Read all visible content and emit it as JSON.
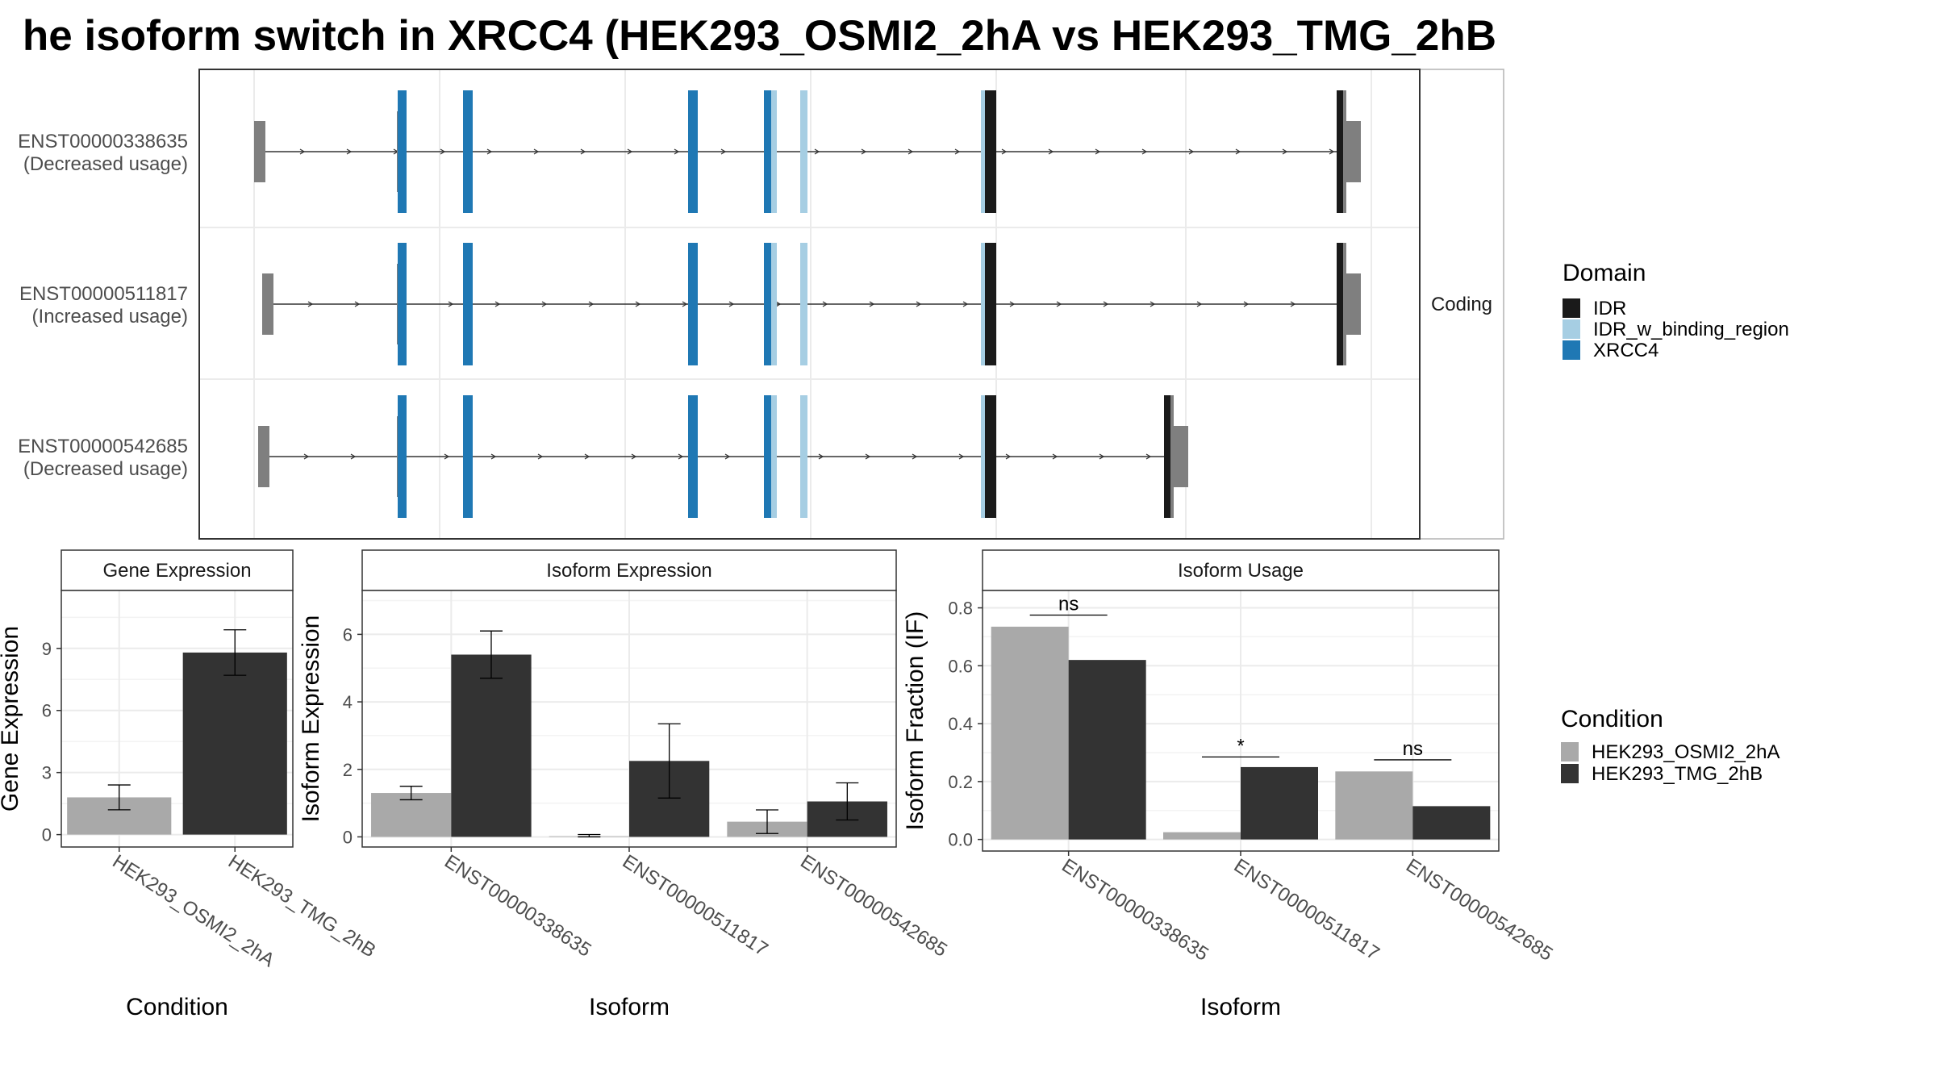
{
  "title": "he isoform switch in XRCC4 (HEK293_OSMI2_2hA vs HEK293_TMG_2hB",
  "colors": {
    "IDR": "#1a1a1a",
    "IDR_w_binding_region": "#a6cee3",
    "XRCC4": "#1f78b4",
    "utr": "#7f7f7f",
    "HEK293_OSMI2_2hA": "#a9a9a9",
    "HEK293_TMG_2hB": "#333333"
  },
  "transcript_panel": {
    "strip_label": "Coding",
    "transcripts": [
      {
        "id": "ENST00000338635",
        "usage": "(Decreased usage)"
      },
      {
        "id": "ENST00000511817",
        "usage": "(Increased usage)"
      },
      {
        "id": "ENST00000542685",
        "usage": "(Decreased usage)"
      }
    ]
  },
  "legend_domain": {
    "title": "Domain",
    "entries": [
      "IDR",
      "IDR_w_binding_region",
      "XRCC4"
    ]
  },
  "legend_condition": {
    "title": "Condition",
    "entries": [
      "HEK293_OSMI2_2hA",
      "HEK293_TMG_2hB"
    ]
  },
  "chart_data": [
    {
      "type": "bar",
      "title": "Gene Expression",
      "ylabel": "Gene Expression",
      "xlabel": "Condition",
      "ylim": [
        -0.6,
        11.8
      ],
      "yticks": [
        0,
        3,
        6,
        9
      ],
      "categories": [
        "HEK293_OSMI2_2hA",
        "HEK293_TMG_2hB"
      ],
      "values": [
        1.8,
        8.8
      ],
      "errors": [
        [
          1.2,
          2.4
        ],
        [
          7.7,
          9.9
        ]
      ]
    },
    {
      "type": "bar",
      "title": "Isoform Expression",
      "ylabel": "Isoform Expression",
      "xlabel": "Isoform",
      "ylim": [
        -0.3,
        7.3
      ],
      "yticks": [
        0,
        2,
        4,
        6
      ],
      "categories": [
        "ENST00000338635",
        "ENST00000511817",
        "ENST00000542685"
      ],
      "series": [
        {
          "name": "HEK293_OSMI2_2hA",
          "values": [
            1.3,
            0.02,
            0.45
          ],
          "errors": [
            [
              1.1,
              1.5
            ],
            [
              0.0,
              0.07
            ],
            [
              0.1,
              0.8
            ]
          ]
        },
        {
          "name": "HEK293_TMG_2hB",
          "values": [
            5.4,
            2.25,
            1.05
          ],
          "errors": [
            [
              4.7,
              6.1
            ],
            [
              1.15,
              3.35
            ],
            [
              0.5,
              1.6
            ]
          ]
        }
      ]
    },
    {
      "type": "bar",
      "title": "Isoform Usage",
      "ylabel": "Isoform Fraction (IF)",
      "xlabel": "Isoform",
      "ylim": [
        -0.04,
        0.86
      ],
      "yticks": [
        0.0,
        0.2,
        0.4,
        0.6,
        0.8
      ],
      "categories": [
        "ENST00000338635",
        "ENST00000511817",
        "ENST00000542685"
      ],
      "series": [
        {
          "name": "HEK293_OSMI2_2hA",
          "values": [
            0.735,
            0.025,
            0.235
          ]
        },
        {
          "name": "HEK293_TMG_2hB",
          "values": [
            0.62,
            0.25,
            0.115
          ]
        }
      ],
      "annotations": [
        {
          "category": "ENST00000338635",
          "text": "ns",
          "y": 0.775
        },
        {
          "category": "ENST00000511817",
          "text": "*",
          "y": 0.285
        },
        {
          "category": "ENST00000542685",
          "text": "ns",
          "y": 0.275
        }
      ]
    }
  ]
}
